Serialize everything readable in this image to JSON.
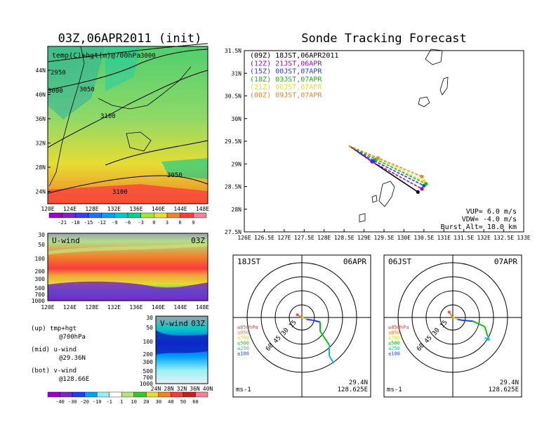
{
  "left_panel": {
    "title": "03Z,06APR2011 (init)",
    "map": {
      "label": "temp(C)+hgt(m)@700hPa",
      "lat_ticks": [
        "44N",
        "40N",
        "36N",
        "32N",
        "28N",
        "24N"
      ],
      "lon_ticks": [
        "120E",
        "124E",
        "128E",
        "132E",
        "136E",
        "140E",
        "144E",
        "148E"
      ],
      "contour_labels": [
        "2950",
        "3000",
        "3050",
        "3100",
        "3050",
        "3100",
        "3000"
      ],
      "colorbar_ticks": [
        "-21",
        "-18",
        "-15",
        "-12",
        "-9",
        "-6",
        "-3",
        "0",
        "3",
        "6",
        "9"
      ]
    },
    "u_wind": {
      "label": "U-wind",
      "time": "03Z",
      "p_ticks": [
        "30",
        "50",
        "100",
        "200",
        "300",
        "500",
        "700",
        "1000"
      ],
      "lon_ticks": [
        "120E",
        "124E",
        "128E",
        "132E",
        "136E",
        "140E",
        "144E",
        "148E"
      ]
    },
    "v_wind": {
      "label": "V-wind",
      "time": "03Z",
      "p_ticks": [
        "30",
        "50",
        "100",
        "200",
        "300",
        "500",
        "700",
        "1000"
      ],
      "lat_ticks": [
        "24N",
        "28N",
        "32N",
        "36N",
        "40N"
      ]
    },
    "notes": [
      {
        "line1": "(up) tmp+hgt",
        "line2": "@700hPa"
      },
      {
        "line1": "(mid) u-wind",
        "line2": "@29.36N"
      },
      {
        "line1": "(bot) v-wind",
        "line2": "@128.66E"
      }
    ],
    "wind_colorbar_ticks": [
      "-40",
      "-30",
      "-20",
      "-10",
      "-1",
      "1",
      "10",
      "20",
      "30",
      "40",
      "50",
      "60"
    ]
  },
  "tracking": {
    "title": "Sonde Tracking Forecast",
    "lat_ticks": [
      "31.5N",
      "31N",
      "30.5N",
      "30N",
      "29.5N",
      "29N",
      "28.5N",
      "28N",
      "27.5N"
    ],
    "lon_ticks": [
      "126E",
      "126.5E",
      "127E",
      "127.5E",
      "128E",
      "128.5E",
      "129E",
      "129.5E",
      "130E",
      "130.5E",
      "131E",
      "131.5E",
      "132E",
      "132.5E",
      "133E"
    ],
    "legend": [
      {
        "text": "(09Z) 18JST,06APR2011",
        "color": "#000000"
      },
      {
        "text": "(12Z) 21JST,06APR",
        "color": "#a000c8"
      },
      {
        "text": "(15Z) 00JST,07APR",
        "color": "#1e3cff"
      },
      {
        "text": "(18Z) 03JST,07APR",
        "color": "#00c800"
      },
      {
        "text": "(21Z) 06JST,07APR",
        "color": "#e6dc32"
      },
      {
        "text": "(00Z) 09JST,07APR",
        "color": "#f08228"
      }
    ],
    "params": [
      "VUP= 6.0 m/s",
      "VDW= -4.0 m/s",
      "Burst Alt= 18.0 km"
    ]
  },
  "chart_data": [
    {
      "type": "line",
      "title": "Sonde Tracking Forecast",
      "xlim": [
        126,
        133
      ],
      "ylim": [
        27.5,
        31.5
      ],
      "launch": {
        "lon": 128.625,
        "lat": 29.4
      },
      "series": [
        {
          "name": "(09Z) 18JST,06APR2011",
          "points": [
            [
              128.625,
              29.4
            ],
            [
              129.2,
              29.05
            ],
            [
              130.35,
              28.38
            ]
          ]
        },
        {
          "name": "(12Z) 21JST,06APR",
          "points": [
            [
              128.625,
              29.4
            ],
            [
              129.2,
              29.05
            ],
            [
              130.45,
              28.45
            ]
          ]
        },
        {
          "name": "(15Z) 00JST,07APR",
          "points": [
            [
              128.625,
              29.4
            ],
            [
              129.25,
              29.07
            ],
            [
              130.5,
              28.52
            ]
          ]
        },
        {
          "name": "(18Z) 03JST,07APR",
          "points": [
            [
              128.625,
              29.4
            ],
            [
              129.3,
              29.1
            ],
            [
              130.55,
              28.56
            ]
          ]
        },
        {
          "name": "(21Z) 06JST,07APR",
          "points": [
            [
              128.625,
              29.4
            ],
            [
              129.35,
              29.12
            ],
            [
              130.5,
              28.62
            ]
          ]
        },
        {
          "name": "(00Z) 09JST,07APR",
          "points": [
            [
              128.625,
              29.4
            ],
            [
              129.35,
              29.13
            ],
            [
              130.45,
              28.72
            ]
          ]
        }
      ]
    },
    {
      "type": "line",
      "title": "Hodograph",
      "label_left": "18JST",
      "label_right": "06APR",
      "ring_labels": [
        "15",
        "30",
        "45",
        "60"
      ],
      "unit": "ms-1",
      "site": [
        "29.4N",
        "128.625E"
      ],
      "pressure_legend": [
        "≥850hPa",
        "≤850",
        "≤700",
        "≤500",
        "≤250",
        "≤100"
      ],
      "series": [
        {
          "name": "wind",
          "u": [
            -5,
            0,
            5,
            12,
            20,
            20,
            30,
            30,
            35
          ],
          "v": [
            3,
            0,
            -2,
            -3,
            -5,
            -15,
            -30,
            -42,
            -50
          ]
        }
      ]
    },
    {
      "type": "line",
      "title": "Hodograph",
      "label_left": "06JST",
      "label_right": "07APR",
      "ring_labels": [
        "15",
        "30",
        "45",
        "60"
      ],
      "unit": "ms-1",
      "site": [
        "29.4N",
        "128.625E"
      ],
      "pressure_legend": [
        "≥850hPa",
        "≤850",
        "≤700",
        "≤500",
        "≤250",
        "≤100"
      ],
      "series": [
        {
          "name": "wind",
          "u": [
            -4,
            0,
            5,
            10,
            22,
            35,
            38,
            40,
            35
          ],
          "v": [
            6,
            0,
            -2,
            -3,
            -4,
            -10,
            -20,
            -25,
            -22
          ]
        }
      ]
    }
  ]
}
